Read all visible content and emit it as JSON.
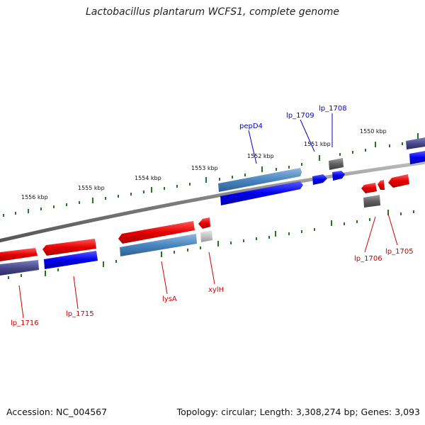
{
  "title": "Lactobacillus plantarum WCFS1, complete genome",
  "footer": {
    "accession": "Accession: NC_004567",
    "topology": "Topology: circular; Length: 3,308,274 bp; Genes: 3,093"
  },
  "colors": {
    "backbone": "#8a8a8a",
    "tick": "#1f7a1f",
    "forward_label": "#0000cc",
    "reverse_label": "#cc0000"
  },
  "scale_labels": [
    "1556 kbp",
    "1555 kbp",
    "1554 kbp",
    "1553 kbp",
    "1552 kbp",
    "1551 kbp",
    "1550 kbp"
  ],
  "gene_labels": [
    {
      "text": "pepD4",
      "strand": "forward"
    },
    {
      "text": "lp_1709",
      "strand": "forward"
    },
    {
      "text": "lp_1708",
      "strand": "forward"
    },
    {
      "text": "lp_1716",
      "strand": "reverse"
    },
    {
      "text": "lp_1715",
      "strand": "reverse"
    },
    {
      "text": "lysA",
      "strand": "reverse"
    },
    {
      "text": "xylH",
      "strand": "reverse"
    },
    {
      "text": "lp_1706",
      "strand": "reverse"
    },
    {
      "text": "lp_1705",
      "strand": "reverse"
    }
  ]
}
